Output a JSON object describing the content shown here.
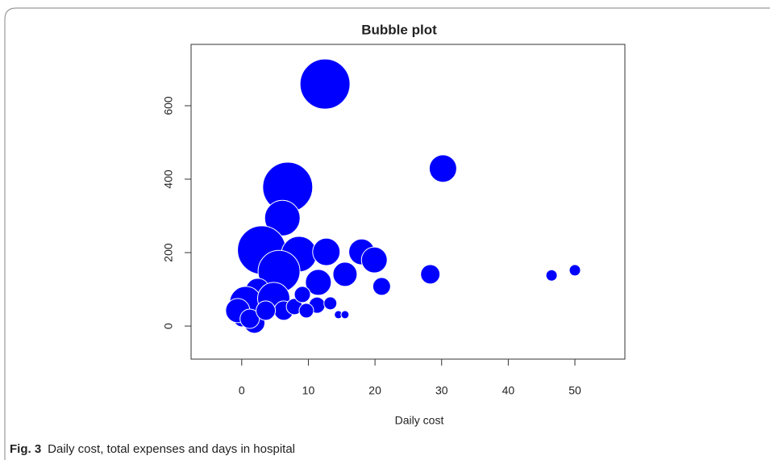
{
  "chart_data": {
    "type": "bubble",
    "title": "Bubble plot",
    "x_label": "Daily cost",
    "color": "#0000ff",
    "x": [
      12.5,
      6.9,
      30.2,
      6.1,
      3.0,
      8.6,
      12.7,
      18.0,
      19.9,
      5.6,
      15.5,
      11.5,
      28.3,
      21.0,
      46.5,
      50.0,
      2.4,
      0.6,
      4.8,
      6.3,
      11.3,
      1.9,
      14.5,
      15.5,
      0.0,
      -0.6,
      1.2,
      3.6,
      7.9,
      9.7,
      13.3,
      9.1
    ],
    "values": [
      659,
      378,
      429,
      294,
      207,
      196,
      202,
      202,
      180,
      149,
      141,
      119,
      141,
      108,
      138,
      152,
      97,
      64,
      75,
      42,
      57,
      9,
      31,
      31,
      20,
      42,
      20,
      42,
      53,
      42,
      62,
      86
    ],
    "sizes": [
      31,
      31,
      17,
      22,
      30,
      22,
      17,
      16,
      16,
      26,
      15,
      16,
      12,
      11,
      7,
      7,
      15,
      20,
      20,
      12,
      10,
      13,
      5,
      5,
      10,
      15,
      12,
      12,
      10,
      9,
      8,
      10
    ],
    "xlim": [
      -7.6,
      57.5
    ],
    "xticks": [
      0,
      10,
      20,
      30,
      40,
      50
    ],
    "ylim": [
      -90,
      767
    ],
    "yticks": [
      0,
      200,
      400,
      600
    ]
  },
  "caption": {
    "label": "Fig. 3",
    "text": "Daily cost, total expenses and days in hospital"
  }
}
